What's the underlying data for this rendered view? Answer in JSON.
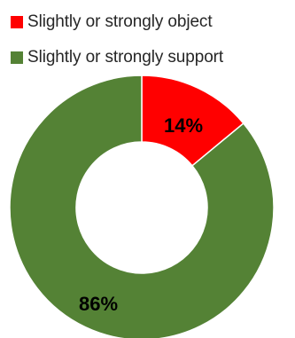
{
  "chart_data": {
    "type": "pie",
    "variant": "donut",
    "title": "",
    "legend_position": "top-left",
    "series": [
      {
        "name": "Slightly or strongly object",
        "value": 14,
        "label": "14%",
        "color": "#ff0000"
      },
      {
        "name": "Slightly or strongly support",
        "value": 86,
        "label": "86%",
        "color": "#548235"
      }
    ]
  }
}
